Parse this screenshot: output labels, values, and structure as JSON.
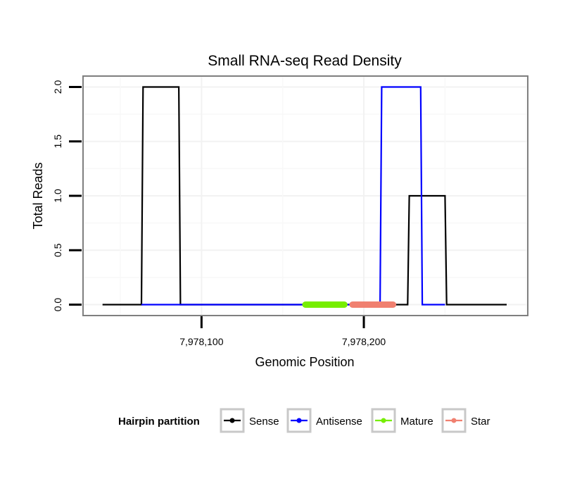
{
  "chart_data": {
    "type": "line",
    "title": "Small RNA-seq Read Density",
    "xlabel": "Genomic Position",
    "ylabel": "Total Reads",
    "xlim": [
      7978027,
      7978301
    ],
    "ylim": [
      -0.1,
      2.1
    ],
    "x_ticks": [
      {
        "value": 7978100,
        "label": "7,978,100"
      },
      {
        "value": 7978200,
        "label": "7,978,200"
      }
    ],
    "y_ticks": [
      {
        "value": 0,
        "label": "0.0"
      },
      {
        "value": 0.5,
        "label": "0.5"
      },
      {
        "value": 1,
        "label": "1.0"
      },
      {
        "value": 1.5,
        "label": "1.5"
      },
      {
        "value": 2,
        "label": "2.0"
      }
    ],
    "grid": true,
    "series": [
      {
        "name": "Sense",
        "color": "#000000",
        "x": [
          7978039,
          7978063,
          7978064,
          7978086,
          7978087,
          7978137,
          7978187,
          7978200,
          7978227,
          7978228,
          7978235,
          7978250,
          7978251,
          7978288
        ],
        "y": [
          0,
          0,
          2,
          2,
          0,
          0,
          0,
          0,
          0,
          1,
          1,
          1,
          0,
          0
        ]
      },
      {
        "name": "Antisense",
        "color": "#0000ff",
        "x": [
          7978063,
          7978087,
          7978137,
          7978187,
          7978210,
          7978211,
          7978235,
          7978236,
          7978250
        ],
        "y": [
          0,
          0,
          0,
          0,
          0,
          2,
          2,
          0,
          0
        ]
      },
      {
        "name": "Mature",
        "color": "#76ee00",
        "x": [
          7978164,
          7978188
        ],
        "y": [
          0,
          0
        ]
      },
      {
        "name": "Star",
        "color": "#f08070",
        "x": [
          7978193,
          7978218
        ],
        "y": [
          0,
          0
        ]
      }
    ]
  },
  "legend": {
    "title": "Hairpin partition",
    "items": [
      "Sense",
      "Antisense",
      "Mature",
      "Star"
    ]
  }
}
